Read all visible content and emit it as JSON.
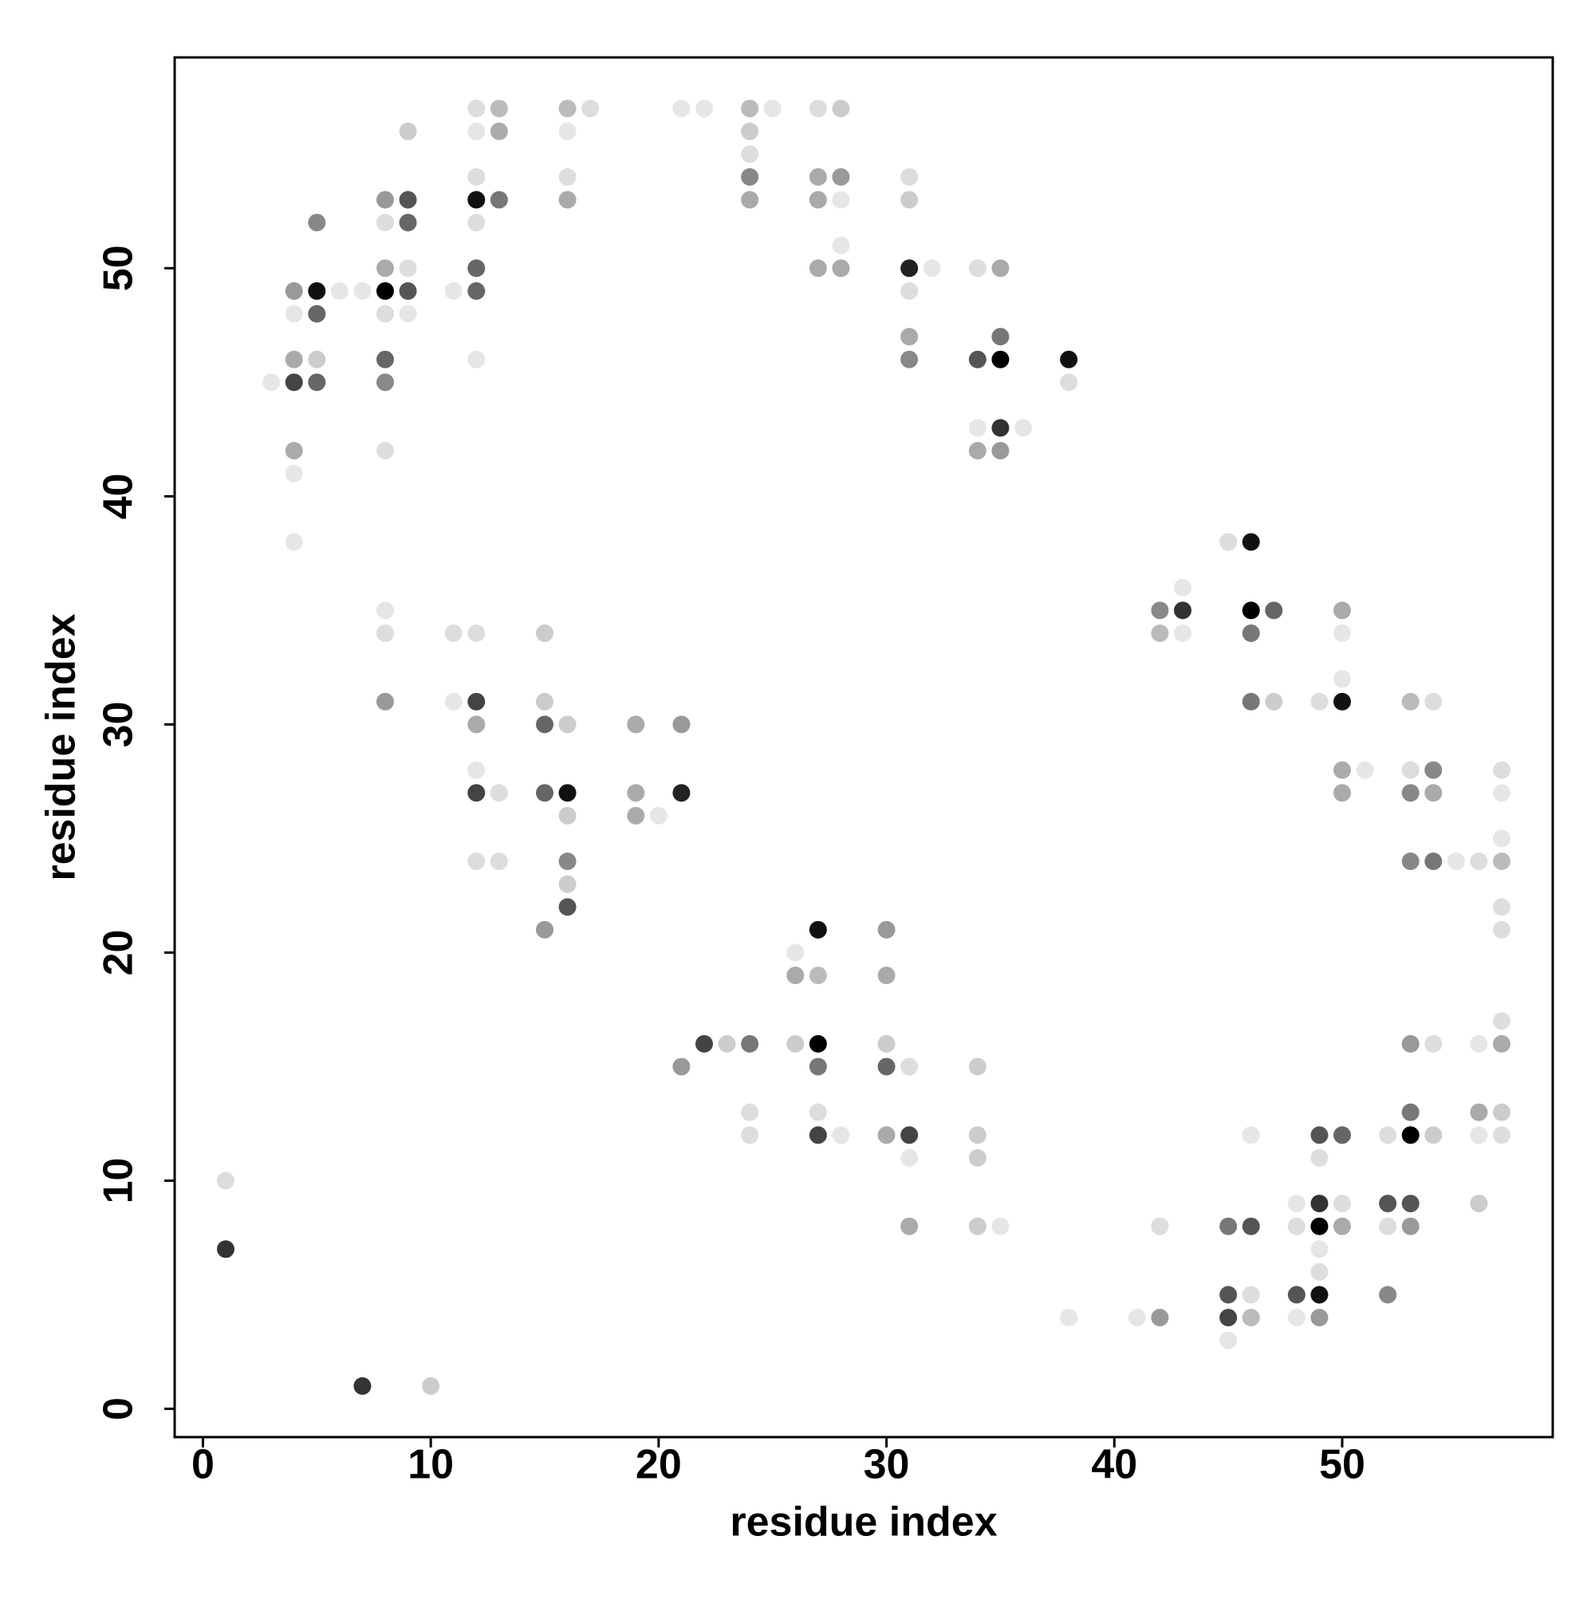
{
  "chart_data": {
    "type": "scatter",
    "x_label": "residue index",
    "y_label": "residue index",
    "xlim": [
      -1.24,
      59.24
    ],
    "ylim": [
      -1.24,
      59.24
    ],
    "xticks": [
      0,
      10,
      20,
      30,
      40,
      50
    ],
    "yticks": [
      0,
      10,
      20,
      30,
      40,
      50
    ],
    "grid": false,
    "x": [
      12,
      13,
      16,
      17,
      21,
      22,
      24,
      25,
      27,
      28,
      9,
      12,
      13,
      16,
      24,
      24,
      12,
      16,
      24,
      27,
      28,
      31,
      8,
      9,
      12,
      13,
      16,
      24,
      27,
      28,
      31,
      5,
      8,
      9,
      12,
      28,
      8,
      9,
      12,
      27,
      28,
      31,
      32,
      34,
      35,
      4,
      5,
      6,
      7,
      8,
      9,
      11,
      12,
      31,
      4,
      5,
      8,
      9,
      31,
      35,
      4,
      5,
      8,
      12,
      31,
      34,
      35,
      38,
      3,
      4,
      5,
      8,
      38,
      34,
      35,
      36,
      4,
      8,
      34,
      35,
      4,
      4,
      45,
      46,
      43,
      8,
      42,
      43,
      46,
      47,
      50,
      8,
      11,
      12,
      15,
      42,
      43,
      46,
      50,
      50,
      8,
      11,
      12,
      15,
      46,
      47,
      49,
      50,
      53,
      54,
      12,
      15,
      16,
      19,
      21,
      12,
      50,
      51,
      53,
      54,
      57,
      12,
      13,
      15,
      16,
      19,
      21,
      50,
      53,
      54,
      57,
      16,
      19,
      20,
      57,
      12,
      13,
      16,
      53,
      54,
      55,
      56,
      57,
      16,
      16,
      57,
      15,
      27,
      30,
      57,
      26,
      26,
      27,
      30,
      57,
      22,
      23,
      24,
      26,
      27,
      30,
      53,
      54,
      56,
      57,
      21,
      27,
      30,
      31,
      34,
      24,
      27,
      53,
      56,
      57,
      24,
      27,
      28,
      30,
      31,
      34,
      46,
      49,
      50,
      52,
      53,
      54,
      56,
      57,
      31,
      34,
      49,
      1,
      48,
      49,
      50,
      52,
      53,
      56,
      31,
      34,
      35,
      42,
      45,
      46,
      48,
      49,
      50,
      52,
      53,
      1,
      49,
      49,
      45,
      46,
      48,
      49,
      52,
      38,
      41,
      42,
      45,
      46,
      48,
      49,
      45,
      7,
      10
    ],
    "y": [
      57,
      57,
      57,
      57,
      57,
      57,
      57,
      57,
      57,
      57,
      56,
      56,
      56,
      56,
      56,
      55,
      54,
      54,
      54,
      54,
      54,
      54,
      53,
      53,
      53,
      53,
      53,
      53,
      53,
      53,
      53,
      52,
      52,
      52,
      52,
      51,
      50,
      50,
      50,
      50,
      50,
      50,
      50,
      50,
      50,
      49,
      49,
      49,
      49,
      49,
      49,
      49,
      49,
      49,
      48,
      48,
      48,
      48,
      47,
      47,
      46,
      46,
      46,
      46,
      46,
      46,
      46,
      46,
      45,
      45,
      45,
      45,
      45,
      43,
      43,
      43,
      42,
      42,
      42,
      42,
      41,
      38,
      38,
      38,
      36,
      35,
      35,
      35,
      35,
      35,
      35,
      34,
      34,
      34,
      34,
      34,
      34,
      34,
      34,
      32,
      31,
      31,
      31,
      31,
      31,
      31,
      31,
      31,
      31,
      31,
      30,
      30,
      30,
      30,
      30,
      28,
      28,
      28,
      28,
      28,
      28,
      27,
      27,
      27,
      27,
      27,
      27,
      27,
      27,
      27,
      27,
      26,
      26,
      26,
      25,
      24,
      24,
      24,
      24,
      24,
      24,
      24,
      24,
      23,
      22,
      22,
      21,
      21,
      21,
      21,
      20,
      19,
      19,
      19,
      17,
      16,
      16,
      16,
      16,
      16,
      16,
      16,
      16,
      16,
      16,
      15,
      15,
      15,
      15,
      15,
      13,
      13,
      13,
      13,
      13,
      12,
      12,
      12,
      12,
      12,
      12,
      12,
      12,
      12,
      12,
      12,
      12,
      12,
      12,
      11,
      11,
      11,
      10,
      9,
      9,
      9,
      9,
      9,
      9,
      8,
      8,
      8,
      8,
      8,
      8,
      8,
      8,
      8,
      8,
      8,
      7,
      7,
      6,
      5,
      5,
      5,
      5,
      5,
      4,
      4,
      4,
      4,
      4,
      4,
      4,
      3,
      1,
      1
    ],
    "colors": [
      "#ddd",
      "#bbb",
      "#bbb",
      "#ddd",
      "#e6e6e6",
      "#e6e6e6",
      "#bbb",
      "#e6e6e6",
      "#ddd",
      "#ccc",
      "#ccc",
      "#e6e6e6",
      "#aaa",
      "#e6e6e6",
      "#ccc",
      "#ddd",
      "#ddd",
      "#ddd",
      "#888",
      "#aaa",
      "#999",
      "#ddd",
      "#999",
      "#555",
      "#111",
      "#777",
      "#aaa",
      "#aaa",
      "#aaa",
      "#e6e6e6",
      "#ccc",
      "#888",
      "#ddd",
      "#666",
      "#ddd",
      "#e6e6e6",
      "#aaa",
      "#ddd",
      "#666",
      "#aaa",
      "#aaa",
      "#222",
      "#e6e6e6",
      "#ddd",
      "#aaa",
      "#999",
      "#111",
      "#e6e6e6",
      "#e6e6e6",
      "#000",
      "#555",
      "#e6e6e6",
      "#666",
      "#ddd",
      "#e6e6e6",
      "#666",
      "#ddd",
      "#e6e6e6",
      "#aaa",
      "#777",
      "#aaa",
      "#ccc",
      "#666",
      "#e6e6e6",
      "#888",
      "#555",
      "#000",
      "#111",
      "#e6e6e6",
      "#444",
      "#666",
      "#888",
      "#ddd",
      "#e6e6e6",
      "#333",
      "#e6e6e6",
      "#aaa",
      "#ddd",
      "#aaa",
      "#999",
      "#e6e6e6",
      "#e6e6e6",
      "#ddd",
      "#111",
      "#e6e6e6",
      "#e6e6e6",
      "#888",
      "#333",
      "#000",
      "#666",
      "#aaa",
      "#ddd",
      "#ddd",
      "#ddd",
      "#ccc",
      "#bbb",
      "#e6e6e6",
      "#777",
      "#e6e6e6",
      "#e6e6e6",
      "#999",
      "#e6e6e6",
      "#444",
      "#ccc",
      "#777",
      "#ccc",
      "#ddd",
      "#111",
      "#bbb",
      "#ddd",
      "#aaa",
      "#666",
      "#ccc",
      "#aaa",
      "#999",
      "#e6e6e6",
      "#aaa",
      "#e6e6e6",
      "#ddd",
      "#888",
      "#ddd",
      "#444",
      "#ddd",
      "#666",
      "#111",
      "#aaa",
      "#222",
      "#aaa",
      "#888",
      "#aaa",
      "#e6e6e6",
      "#ccc",
      "#aaa",
      "#e6e6e6",
      "#e6e6e6",
      "#ddd",
      "#ddd",
      "#888",
      "#888",
      "#777",
      "#e6e6e6",
      "#ddd",
      "#bbb",
      "#ccc",
      "#555",
      "#ddd",
      "#999",
      "#111",
      "#999",
      "#ddd",
      "#e6e6e6",
      "#aaa",
      "#bbb",
      "#aaa",
      "#ddd",
      "#444",
      "#ccc",
      "#777",
      "#ccc",
      "#000",
      "#ccc",
      "#999",
      "#ddd",
      "#e6e6e6",
      "#aaa",
      "#999",
      "#777",
      "#666",
      "#ddd",
      "#ccc",
      "#ddd",
      "#ddd",
      "#777",
      "#aaa",
      "#ccc",
      "#ddd",
      "#444",
      "#e6e6e6",
      "#aaa",
      "#444",
      "#ccc",
      "#e6e6e6",
      "#555",
      "#666",
      "#ddd",
      "#000",
      "#ccc",
      "#e6e6e6",
      "#ddd",
      "#e6e6e6",
      "#ccc",
      "#ddd",
      "#ddd",
      "#e6e6e6",
      "#333",
      "#ddd",
      "#555",
      "#555",
      "#ccc",
      "#aaa",
      "#ccc",
      "#e6e6e6",
      "#ddd",
      "#777",
      "#555",
      "#ddd",
      "#000",
      "#aaa",
      "#ddd",
      "#999",
      "#333",
      "#e6e6e6",
      "#ddd",
      "#555",
      "#ddd",
      "#555",
      "#111",
      "#888",
      "#e6e6e6",
      "#e6e6e6",
      "#999",
      "#444",
      "#bbb",
      "#e6e6e6",
      "#999",
      "#e6e6e6",
      "#333",
      "#ccc"
    ]
  }
}
